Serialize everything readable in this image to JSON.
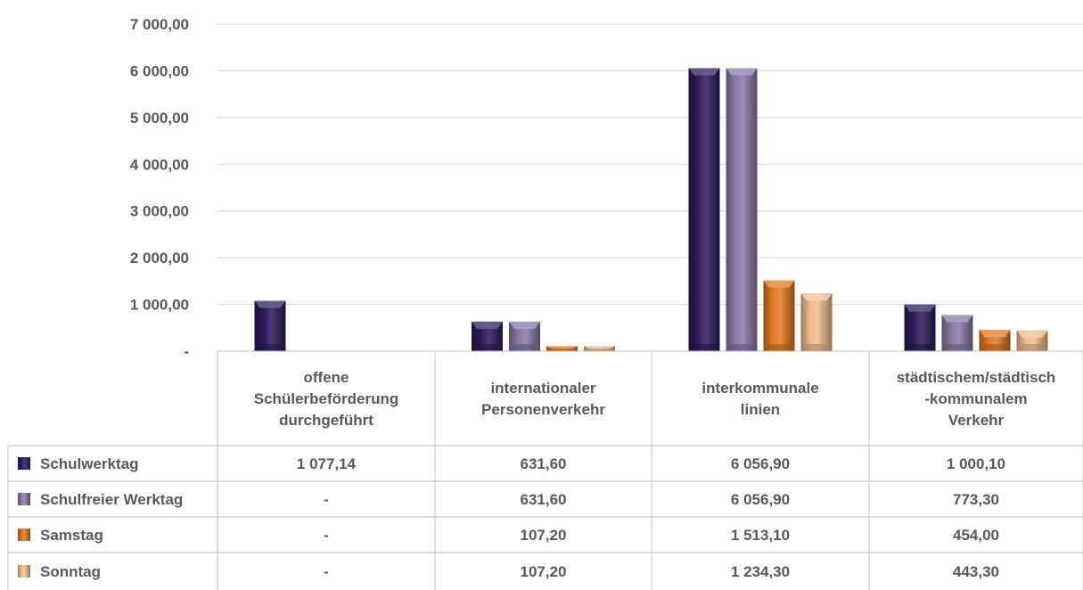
{
  "chart_data": {
    "type": "bar",
    "categories": [
      [
        "offene",
        "Schülerbeförderung",
        "durchgeführt"
      ],
      [
        "internationaler",
        "Personenverkehr"
      ],
      [
        "interkommunale",
        "linien"
      ],
      [
        "städtischem/städtisch",
        "-kommunalem",
        "Verkehr"
      ]
    ],
    "ylim": [
      0,
      7000
    ],
    "yticks": [
      0,
      1000,
      2000,
      3000,
      4000,
      5000,
      6000,
      7000
    ],
    "ytick_labels": [
      "-",
      "1 000,00",
      "2 000,00",
      "3 000,00",
      "4 000,00",
      "5 000,00",
      "6 000,00",
      "7 000,00"
    ],
    "grid": true,
    "legend": "data-table",
    "series": [
      {
        "name": "Schulwerktag",
        "color": "#2e1a5c",
        "values": [
          1077.14,
          631.6,
          6056.9,
          1000.1
        ],
        "labels": [
          "1 077,14",
          "631,60",
          "6 056,90",
          "1 000,10"
        ]
      },
      {
        "name": "Schulfreier Werktag",
        "color": "#8a78a8",
        "values": [
          0,
          631.6,
          6056.9,
          773.3
        ],
        "labels": [
          "-",
          "631,60",
          "6 056,90",
          "773,30"
        ]
      },
      {
        "name": "Samstag",
        "color": "#e07a1f",
        "values": [
          0,
          107.2,
          1513.1,
          454.0
        ],
        "labels": [
          "-",
          "107,20",
          "1 513,10",
          "454,00"
        ]
      },
      {
        "name": "Sonntag",
        "color": "#f0bc8c",
        "values": [
          0,
          107.2,
          1234.3,
          443.3
        ],
        "labels": [
          "-",
          "107,20",
          "1 234,30",
          "443,30"
        ]
      }
    ]
  }
}
